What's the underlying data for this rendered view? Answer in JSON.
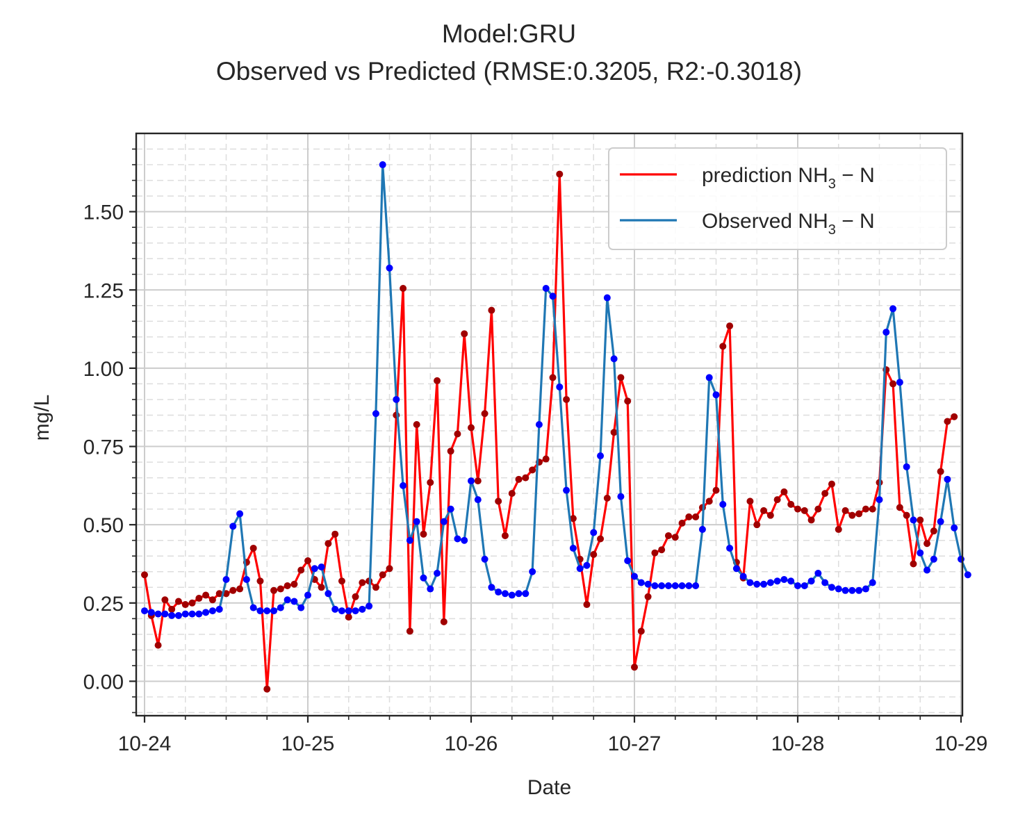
{
  "chart_data": {
    "type": "line",
    "title_lines": [
      "Model:GRU",
      "Observed vs Predicted (RMSE:0.3205, R2:-0.3018)"
    ],
    "xlabel": "Date",
    "ylabel": "mg/L",
    "x_tick_labels": [
      "10-24",
      "10-25",
      "10-26",
      "10-27",
      "10-28",
      "10-29"
    ],
    "y_tick_labels": [
      "0.00",
      "0.25",
      "0.50",
      "0.75",
      "1.00",
      "1.25",
      "1.50"
    ],
    "y_ticks": [
      0.0,
      0.25,
      0.5,
      0.75,
      1.0,
      1.25,
      1.5
    ],
    "xlim": [
      "10-24",
      "10-29"
    ],
    "ylim": [
      -0.11,
      1.75
    ],
    "grid": true,
    "legend_position": "top-right",
    "series": [
      {
        "name": "prediction NH3-N",
        "legend_main": "prediction NH",
        "legend_sub": "3",
        "legend_tail": " − N",
        "color": "#ff0000",
        "marker_color": "#a00000",
        "values": [
          0.34,
          0.21,
          0.115,
          0.26,
          0.23,
          0.255,
          0.245,
          0.25,
          0.265,
          0.275,
          0.26,
          0.28,
          0.28,
          0.29,
          0.295,
          0.38,
          0.425,
          0.32,
          -0.025,
          0.29,
          0.295,
          0.305,
          0.31,
          0.355,
          0.385,
          0.325,
          0.3,
          0.44,
          0.47,
          0.32,
          0.205,
          0.27,
          0.315,
          0.32,
          0.3,
          0.34,
          0.36,
          0.85,
          1.255,
          0.16,
          0.82,
          0.47,
          0.635,
          0.96,
          0.19,
          0.735,
          0.79,
          1.11,
          0.81,
          0.64,
          0.855,
          1.185,
          0.575,
          0.465,
          0.6,
          0.645,
          0.65,
          0.675,
          0.7,
          0.71,
          0.97,
          1.62,
          0.9,
          0.52,
          0.39,
          0.245,
          0.405,
          0.455,
          0.585,
          0.795,
          0.97,
          0.895,
          0.045,
          0.16,
          0.27,
          0.41,
          0.42,
          0.465,
          0.46,
          0.505,
          0.525,
          0.525,
          0.555,
          0.575,
          0.61,
          1.07,
          1.135,
          0.38,
          0.33,
          0.575,
          0.5,
          0.545,
          0.53,
          0.58,
          0.605,
          0.565,
          0.55,
          0.545,
          0.515,
          0.55,
          0.6,
          0.63,
          0.485,
          0.545,
          0.53,
          0.535,
          0.55,
          0.55,
          0.635,
          0.995,
          0.95,
          0.555,
          0.53,
          0.375,
          0.515,
          0.44,
          0.48,
          0.67,
          0.83,
          0.845
        ]
      },
      {
        "name": "Observed NH3-N",
        "legend_main": "Observed NH",
        "legend_sub": "3",
        "legend_tail": " − N",
        "color": "#1f77b4",
        "marker_color": "#0000ff",
        "values": [
          0.225,
          0.22,
          0.215,
          0.215,
          0.21,
          0.21,
          0.215,
          0.215,
          0.215,
          0.22,
          0.225,
          0.23,
          0.325,
          0.495,
          0.535,
          0.325,
          0.235,
          0.225,
          0.225,
          0.225,
          0.235,
          0.26,
          0.255,
          0.235,
          0.275,
          0.36,
          0.365,
          0.28,
          0.23,
          0.225,
          0.225,
          0.225,
          0.23,
          0.24,
          0.855,
          1.65,
          1.32,
          0.9,
          0.625,
          0.45,
          0.51,
          0.33,
          0.295,
          0.345,
          0.51,
          0.55,
          0.455,
          0.45,
          0.64,
          0.58,
          0.39,
          0.3,
          0.285,
          0.28,
          0.275,
          0.28,
          0.28,
          0.35,
          0.82,
          1.255,
          1.23,
          0.94,
          0.61,
          0.425,
          0.36,
          0.37,
          0.475,
          0.72,
          1.225,
          1.03,
          0.59,
          0.385,
          0.335,
          0.315,
          0.31,
          0.305,
          0.305,
          0.305,
          0.305,
          0.305,
          0.305,
          0.305,
          0.485,
          0.97,
          0.915,
          0.565,
          0.425,
          0.36,
          0.335,
          0.315,
          0.31,
          0.31,
          0.315,
          0.32,
          0.325,
          0.32,
          0.305,
          0.305,
          0.32,
          0.345,
          0.315,
          0.3,
          0.295,
          0.29,
          0.29,
          0.29,
          0.295,
          0.315,
          0.58,
          1.115,
          1.19,
          0.955,
          0.685,
          0.515,
          0.41,
          0.355,
          0.39,
          0.51,
          0.645,
          0.49,
          0.39,
          0.34
        ]
      }
    ]
  }
}
